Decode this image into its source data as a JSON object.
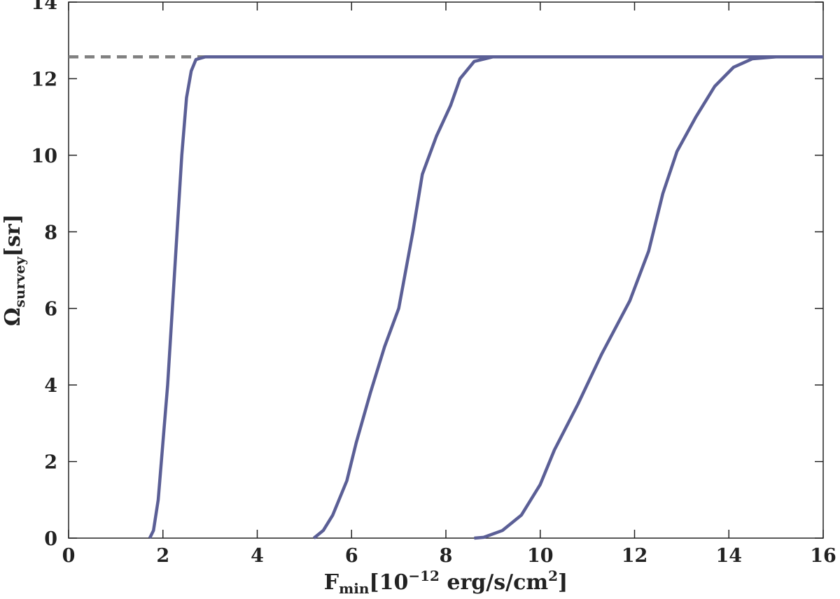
{
  "chart_data": {
    "type": "line",
    "xlabel_parts": [
      "F",
      "min",
      "[10",
      "−12",
      " erg/s/cm",
      "2",
      "]"
    ],
    "ylabel_parts": [
      "Ω",
      "survey",
      "[sr]"
    ],
    "xlim": [
      0,
      16
    ],
    "ylim": [
      0,
      14
    ],
    "xticks": [
      0,
      2,
      4,
      6,
      8,
      10,
      12,
      14,
      16
    ],
    "yticks": [
      0,
      2,
      4,
      6,
      8,
      10,
      12,
      14
    ],
    "reference_line": {
      "color": "#808080",
      "dashed": true,
      "x": [
        0,
        2.9
      ],
      "values": [
        12.57,
        12.57
      ]
    },
    "series": [
      {
        "color": "#5b5f96",
        "x": [
          1.72,
          1.8,
          1.9,
          2.0,
          2.1,
          2.2,
          2.3,
          2.4,
          2.5,
          2.6,
          2.7,
          2.9,
          16
        ],
        "values": [
          0,
          0.2,
          1,
          2.5,
          4,
          6,
          8,
          10,
          11.5,
          12.2,
          12.5,
          12.57,
          12.57
        ]
      },
      {
        "color": "#5b5f96",
        "x": [
          5.2,
          5.4,
          5.6,
          5.9,
          6.1,
          6.4,
          6.7,
          7.0,
          7.3,
          7.5,
          7.8,
          8.1,
          8.3,
          8.6,
          9.0,
          16
        ],
        "values": [
          0,
          0.2,
          0.6,
          1.5,
          2.5,
          3.8,
          5,
          6,
          8,
          9.5,
          10.5,
          11.3,
          12,
          12.45,
          12.57,
          12.57
        ]
      },
      {
        "color": "#5b5f96",
        "x": [
          8.6,
          8.8,
          9.2,
          9.6,
          10.0,
          10.3,
          10.8,
          11.3,
          11.9,
          12.3,
          12.6,
          12.9,
          13.3,
          13.7,
          14.1,
          14.5,
          15.0,
          16
        ],
        "values": [
          0,
          0.02,
          0.2,
          0.6,
          1.4,
          2.3,
          3.5,
          4.8,
          6.2,
          7.5,
          9,
          10.1,
          11,
          11.8,
          12.3,
          12.52,
          12.57,
          12.57
        ]
      }
    ]
  }
}
